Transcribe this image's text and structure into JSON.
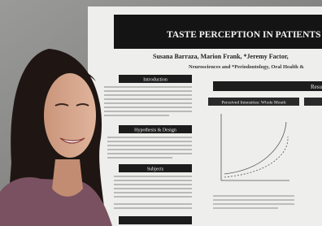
{
  "poster": {
    "title": "TASTE PERCEPTION IN PATIENTS W",
    "authors": "Susana Barraza, Marion Frank, *Jeremy Factor, ",
    "affiliation": "Neurosciences and *Periodontology, Oral Health & ",
    "sections": [
      "Introduction",
      "Hypothesis & Design",
      "Subjects"
    ],
    "results_header": "Resu",
    "chart_title": "Perceived Intensities: Whole Mouth"
  }
}
